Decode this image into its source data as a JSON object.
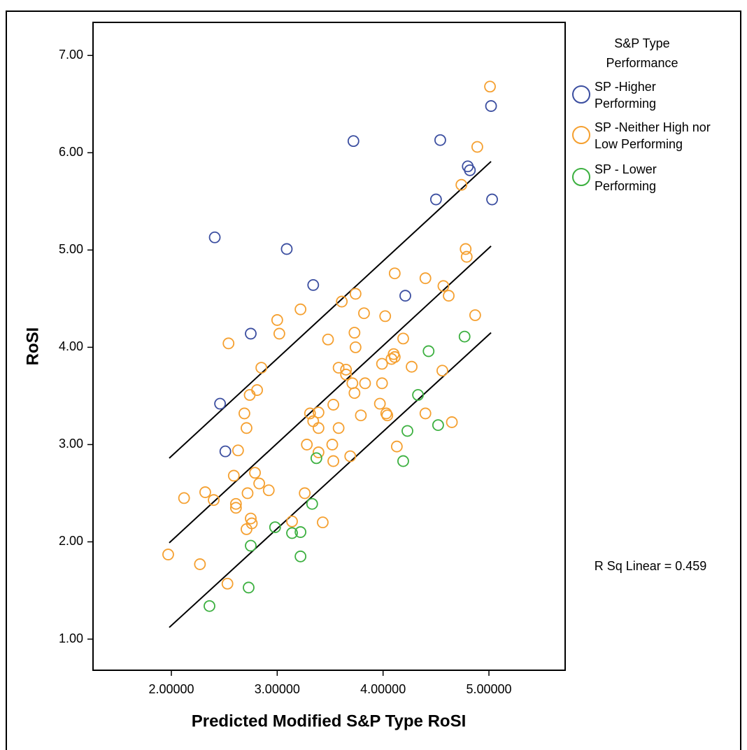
{
  "chart_data": {
    "type": "scatter",
    "x_label": "Predicted Modified S&P Type RoSI",
    "y_label": "RoSI",
    "legend_title": "S&P Type Performance",
    "annotation": "R Sq Linear = 0.459",
    "xlim": [
      1.26,
      5.72
    ],
    "ylim": [
      0.68,
      7.34
    ],
    "xticks": [
      {
        "value": 2,
        "label": "2.00000"
      },
      {
        "value": 3,
        "label": "3.00000"
      },
      {
        "value": 4,
        "label": "4.00000"
      },
      {
        "value": 5,
        "label": "5.00000"
      }
    ],
    "yticks": [
      {
        "value": 1,
        "label": "1.00"
      },
      {
        "value": 2,
        "label": "2.00"
      },
      {
        "value": 3,
        "label": "3.00"
      },
      {
        "value": 4,
        "label": "4.00"
      },
      {
        "value": 5,
        "label": "5.00"
      },
      {
        "value": 6,
        "label": "6.00"
      },
      {
        "value": 7,
        "label": "7.00"
      }
    ],
    "grid": false,
    "fit_lines": [
      {
        "x": [
          1.98,
          5.02
        ],
        "y": [
          2.86,
          5.91
        ]
      },
      {
        "x": [
          1.98,
          5.02
        ],
        "y": [
          1.99,
          5.04
        ]
      },
      {
        "x": [
          1.98,
          5.02
        ],
        "y": [
          1.12,
          4.15
        ]
      }
    ],
    "series": [
      {
        "name": "SP -Higher Performing",
        "color": "#3b4ea0",
        "x": [
          2.41,
          3.09,
          3.34,
          2.75,
          3.72,
          4.54,
          4.5,
          4.8,
          4.82,
          5.02,
          5.03,
          4.21,
          2.46,
          2.51
        ],
        "values": [
          5.13,
          5.01,
          4.64,
          4.14,
          6.12,
          6.13,
          5.52,
          5.86,
          5.82,
          6.48,
          5.52,
          4.53,
          3.42,
          2.93
        ]
      },
      {
        "name": "SP -Neither High nor Low Performing",
        "color": "#f5a030",
        "x": [
          5.01,
          4.89,
          4.74,
          4.78,
          4.79,
          4.11,
          4.4,
          4.57,
          4.62,
          4.87,
          3.74,
          3.61,
          3.82,
          3.22,
          3.0,
          3.02,
          4.02,
          3.73,
          3.48,
          4.19,
          2.54,
          3.74,
          2.85,
          3.58,
          3.65,
          3.65,
          4.1,
          4.08,
          4.11,
          3.99,
          4.27,
          4.56,
          2.81,
          2.74,
          3.71,
          3.83,
          3.99,
          3.73,
          2.69,
          3.31,
          3.39,
          3.53,
          3.97,
          4.03,
          4.04,
          4.4,
          3.79,
          3.34,
          2.71,
          3.39,
          3.58,
          4.65,
          2.63,
          3.28,
          3.39,
          3.52,
          3.53,
          3.69,
          4.13,
          2.59,
          2.79,
          2.83,
          2.92,
          2.32,
          2.12,
          2.4,
          2.72,
          3.26,
          2.61,
          2.61,
          2.75,
          2.76,
          2.71,
          3.14,
          3.43,
          1.97,
          2.27,
          2.53
        ],
        "values": [
          6.68,
          6.06,
          5.67,
          5.01,
          4.93,
          4.76,
          4.71,
          4.63,
          4.53,
          4.33,
          4.55,
          4.47,
          4.35,
          4.39,
          4.28,
          4.14,
          4.32,
          4.15,
          4.08,
          4.09,
          4.04,
          4.0,
          3.79,
          3.79,
          3.77,
          3.72,
          3.93,
          3.88,
          3.9,
          3.83,
          3.8,
          3.76,
          3.56,
          3.51,
          3.63,
          3.63,
          3.63,
          3.53,
          3.32,
          3.32,
          3.33,
          3.41,
          3.42,
          3.32,
          3.3,
          3.32,
          3.3,
          3.24,
          3.17,
          3.17,
          3.17,
          3.23,
          2.94,
          3.0,
          2.92,
          3.0,
          2.83,
          2.88,
          2.98,
          2.68,
          2.71,
          2.6,
          2.53,
          2.51,
          2.45,
          2.43,
          2.5,
          2.5,
          2.39,
          2.35,
          2.24,
          2.19,
          2.13,
          2.21,
          2.2,
          1.87,
          1.77,
          1.57
        ]
      },
      {
        "name": "SP - Lower Performing",
        "color": "#3cb040",
        "x": [
          4.77,
          4.43,
          4.33,
          4.52,
          4.23,
          4.19,
          3.37,
          3.33,
          2.98,
          3.14,
          3.22,
          2.75,
          3.22,
          2.73,
          2.36
        ],
        "values": [
          4.11,
          3.96,
          3.51,
          3.2,
          3.14,
          2.83,
          2.86,
          2.39,
          2.15,
          2.09,
          2.1,
          1.96,
          1.85,
          1.53,
          1.34
        ]
      }
    ]
  }
}
